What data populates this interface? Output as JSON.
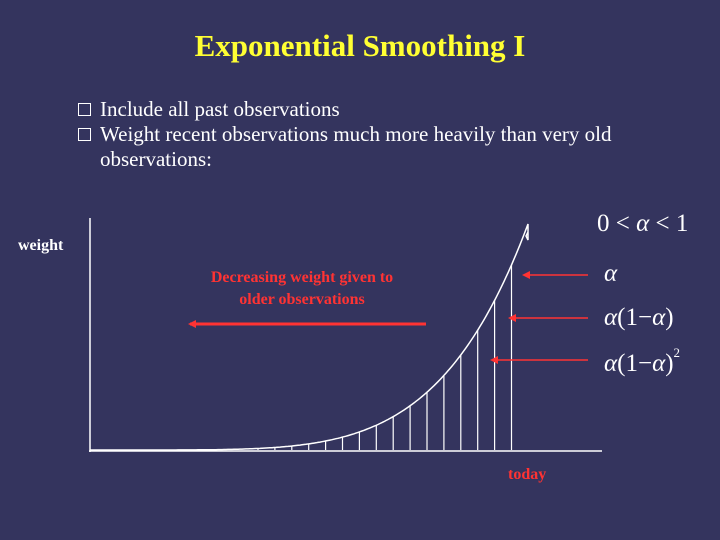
{
  "slide": {
    "title": "Exponential Smoothing I",
    "bullets": [
      "Include all past observations",
      "Weight recent observations much more heavily than very old observations:"
    ]
  },
  "figure": {
    "y_axis_label": "weight",
    "arrow_label": "Decreasing weight given to older observations",
    "x_label": "today",
    "condition": {
      "left": "0",
      "lt1": "<",
      "symbol": "α",
      "lt2": "<",
      "right": "1"
    },
    "weights": {
      "w0": {
        "symbol": "α"
      },
      "w1": {
        "symbol": "α",
        "factor": "(1−",
        "factor_symbol": "α",
        "close": ")"
      },
      "w2": {
        "symbol": "α",
        "factor": "(1−",
        "factor_symbol": "α",
        "close": ")",
        "power": "2"
      }
    }
  },
  "colors": {
    "background": "#34345e",
    "title": "#ffff33",
    "accent_red": "#ff3333",
    "text": "#ffffff"
  }
}
